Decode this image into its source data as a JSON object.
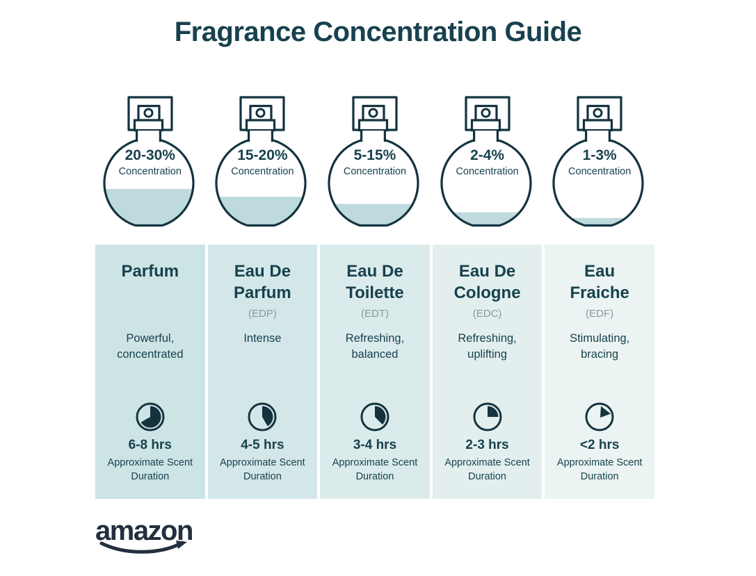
{
  "title": "Fragrance Concentration Guide",
  "logo": {
    "brand": "amazon"
  },
  "colors": {
    "ink": "#17414e",
    "outline": "#14333f",
    "liquid": "#bedade",
    "abbr": "#87999d",
    "navy": "#232f3e"
  },
  "items": [
    {
      "percent": "20-30%",
      "concentration_label": "Concentration",
      "fill_level": 0.43,
      "name": "Parfum",
      "abbr": "",
      "description": "Powerful, concentrated",
      "clock": {
        "type": "pie",
        "degrees": 240
      },
      "duration": "6-8 hrs",
      "duration_caption": "Approximate Scent Duration",
      "bg_color": "#cde4e5"
    },
    {
      "percent": "15-20%",
      "concentration_label": "Concentration",
      "fill_level": 0.34,
      "name": "Eau De Parfum",
      "abbr": "(EDP)",
      "description": "Intense",
      "clock": {
        "type": "pie",
        "degrees": 150
      },
      "duration": "4-5 hrs",
      "duration_caption": "Approximate Scent Duration",
      "bg_color": "#d4e7e8"
    },
    {
      "percent": "5-15%",
      "concentration_label": "Concentration",
      "fill_level": 0.26,
      "name": "Eau De Toilette",
      "abbr": "(EDT)",
      "description": "Refreshing, balanced",
      "clock": {
        "type": "pie",
        "degrees": 135
      },
      "duration": "3-4 hrs",
      "duration_caption": "Approximate Scent Duration",
      "bg_color": "#dbebeb"
    },
    {
      "percent": "2-4%",
      "concentration_label": "Concentration",
      "fill_level": 0.165,
      "name": "Eau De Cologne",
      "abbr": "(EDC)",
      "description": "Refreshing, uplifting",
      "clock": {
        "type": "pie",
        "degrees": 90
      },
      "duration": "2-3 hrs",
      "duration_caption": "Approximate Scent Duration",
      "bg_color": "#e3efee"
    },
    {
      "percent": "1-3%",
      "concentration_label": "Concentration",
      "fill_level": 0.1,
      "name": "Eau Fraiche",
      "abbr": "(EDF)",
      "description": "Stimulating, bracing",
      "clock": {
        "type": "triangle"
      },
      "duration": "<2 hrs",
      "duration_caption": "Approximate Scent Duration",
      "bg_color": "#ebf4f2"
    }
  ]
}
